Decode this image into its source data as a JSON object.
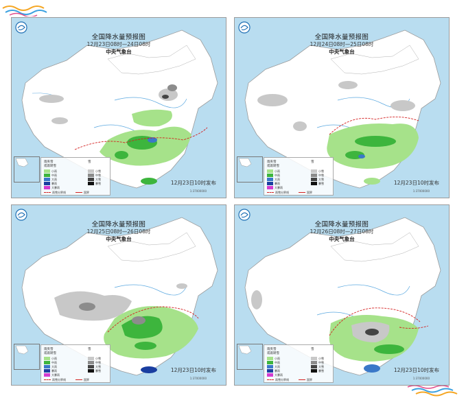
{
  "panels": [
    {
      "id": "panel-1",
      "title": "全国降水量预报图",
      "period": "12月23日08时—24日08时",
      "org": "中央气象台",
      "issued": "12月23日10时发布"
    },
    {
      "id": "panel-2",
      "title": "全国降水量预报图",
      "period": "12月24日08时—25日08时",
      "org": "中央气象台",
      "issued": "12月23日10时发布"
    },
    {
      "id": "panel-3",
      "title": "全国降水量预报图",
      "period": "12月25日08时—26日08时",
      "org": "中央气象台",
      "issued": "12月23日10时发布"
    },
    {
      "id": "panel-4",
      "title": "全国降水量预报图",
      "period": "12月26日08时—27日08时",
      "org": "中央气象台",
      "issued": "12月23日10时发布"
    }
  ],
  "legend": {
    "rain_header": "雨夹雪",
    "rain_sub": "或雨转雪",
    "snow_header": "雪",
    "rain_levels": [
      "小雨",
      "中雨",
      "大雨",
      "暴雨",
      "大暴雨"
    ],
    "snow_levels": [
      "小雪",
      "中雪",
      "大雪",
      "暴雪"
    ],
    "line_freezing": "雨雪分界线",
    "line_border": "国界"
  },
  "colors": {
    "sea": "#b9ddf0",
    "land": "#ffffff",
    "light_rain": "#a6e28a",
    "moderate_rain": "#3db53d",
    "heavy_rain": "#3a78c8",
    "storm_rain": "#1a3ea0",
    "light_snow": "#c8c8c8",
    "moderate_snow": "#8c8c8c",
    "heavy_snow": "#444444",
    "boundary": "#d42020",
    "river": "#5aa8e0"
  },
  "scale_text": "1:37000000"
}
